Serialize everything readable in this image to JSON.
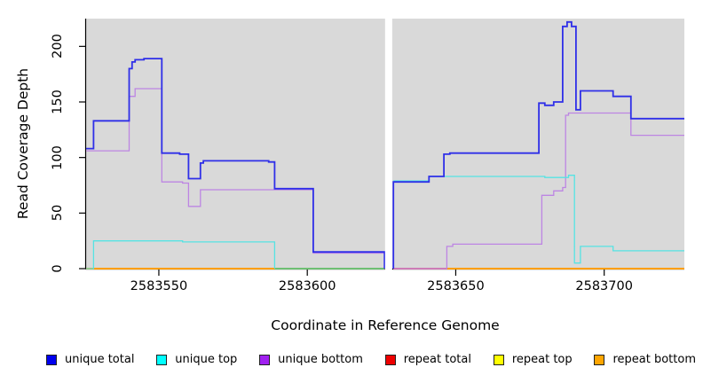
{
  "figure": {
    "background": "#ffffff",
    "panel_bg": "#d9d9d9",
    "axis_color": "#000000",
    "gap_color": "#ffffff"
  },
  "chart_data": {
    "type": "line",
    "subtype": "step-post",
    "title": "",
    "xlabel": "Coordinate in Reference Genome",
    "ylabel": "Read Coverage Depth",
    "x_range": [
      2583525.5,
      2583727.0
    ],
    "y_range": [
      0,
      225
    ],
    "x_ticks": [
      2583550,
      2583600,
      2583650,
      2583700
    ],
    "x_tick_labels": [
      "2583550",
      "2583600",
      "2583650",
      "2583700"
    ],
    "y_ticks": [
      0,
      50,
      100,
      150,
      200
    ],
    "y_tick_labels": [
      "0",
      "50",
      "100",
      "150",
      "200"
    ],
    "grid": false,
    "gap": {
      "from": 2583626.2,
      "to": 2583628.6
    },
    "legend_position": "bottom",
    "legend": [
      {
        "label": "unique total",
        "color": "#0000ee"
      },
      {
        "label": "unique top",
        "color": "#00ffff"
      },
      {
        "label": "unique bottom",
        "color": "#a020f0"
      },
      {
        "label": "repeat total",
        "color": "#ee0000"
      },
      {
        "label": "repeat top",
        "color": "#ffff00"
      },
      {
        "label": "repeat bottom",
        "color": "#ffa500"
      }
    ],
    "series": [
      {
        "name": "repeat total",
        "color": "#ee0000",
        "width": 1.2,
        "z": 1,
        "segments": [
          [
            [
              2583525.5,
              0
            ],
            [
              2583626,
              0
            ]
          ],
          [
            [
              2583629,
              0
            ],
            [
              2583727,
              0
            ]
          ]
        ]
      },
      {
        "name": "repeat top",
        "color": "#ffff00",
        "width": 1.2,
        "z": 2,
        "segments": [
          [
            [
              2583525.5,
              0
            ],
            [
              2583626,
              0
            ]
          ],
          [
            [
              2583629,
              0
            ],
            [
              2583727,
              0
            ]
          ]
        ]
      },
      {
        "name": "repeat bottom",
        "color": "#ff9e00",
        "width": 2,
        "z": 3,
        "segments": [
          [
            [
              2583525.5,
              0
            ],
            [
              2583626,
              0
            ]
          ],
          [
            [
              2583629,
              0
            ],
            [
              2583727,
              0
            ]
          ]
        ]
      },
      {
        "name": "zero-line blend: unique top over repeats",
        "color": "#6fbf73",
        "width": 2,
        "z": 4,
        "segments": [
          [
            [
              2583589,
              0
            ],
            [
              2583626,
              0
            ]
          ]
        ]
      },
      {
        "name": "zero-line blend: unique bottom over repeats",
        "color": "#e96c6c",
        "width": 2,
        "z": 5,
        "segments": [
          [
            [
              2583629,
              0
            ],
            [
              2583647,
              0
            ]
          ]
        ]
      },
      {
        "name": "unique bottom",
        "color": "#bd85e3",
        "width": 1.3,
        "z": 6,
        "segments": [
          [
            [
              2583525.5,
              106
            ],
            [
              2583540,
              155
            ],
            [
              2583542,
              162
            ],
            [
              2583551,
              78
            ],
            [
              2583558,
              77
            ],
            [
              2583560,
              56
            ],
            [
              2583564,
              71
            ],
            [
              2583602,
              14
            ],
            [
              2583626,
              0
            ]
          ],
          [
            [
              2583629,
              0
            ],
            [
              2583647,
              20
            ],
            [
              2583649,
              22
            ],
            [
              2583679,
              66
            ],
            [
              2583683,
              70
            ],
            [
              2583686,
              73
            ],
            [
              2583687,
              138
            ],
            [
              2583688,
              140
            ],
            [
              2583709,
              120
            ],
            [
              2583727,
              120
            ]
          ]
        ]
      },
      {
        "name": "unique top",
        "color": "#55e3e3",
        "width": 1.3,
        "z": 7,
        "segments": [
          [
            [
              2583525.5,
              0
            ],
            [
              2583528,
              25
            ],
            [
              2583558,
              24
            ],
            [
              2583589,
              0
            ]
          ],
          [
            [
              2583629,
              79
            ],
            [
              2583641,
              83
            ],
            [
              2583680,
              82
            ],
            [
              2583688,
              84
            ],
            [
              2583690,
              5
            ],
            [
              2583692,
              20
            ],
            [
              2583703,
              16
            ],
            [
              2583727,
              16
            ]
          ]
        ]
      },
      {
        "name": "unique total",
        "color": "#2f2fe8",
        "width": 1.8,
        "z": 8,
        "segments": [
          [
            [
              2583525.5,
              108
            ],
            [
              2583528,
              133
            ],
            [
              2583540,
              180
            ],
            [
              2583541,
              186
            ],
            [
              2583542,
              188
            ],
            [
              2583545,
              189
            ],
            [
              2583551,
              104
            ],
            [
              2583557,
              103
            ],
            [
              2583560,
              81
            ],
            [
              2583564,
              95
            ],
            [
              2583565,
              97
            ],
            [
              2583587,
              96
            ],
            [
              2583589,
              72
            ],
            [
              2583602,
              15
            ],
            [
              2583626,
              0
            ]
          ],
          [
            [
              2583629,
              0
            ],
            [
              2583629,
              78
            ],
            [
              2583641,
              83
            ],
            [
              2583646,
              103
            ],
            [
              2583648,
              104
            ],
            [
              2583678,
              149
            ],
            [
              2583680,
              147
            ],
            [
              2583683,
              150
            ],
            [
              2583686,
              154
            ],
            [
              2583686,
              218
            ],
            [
              2583687.5,
              222
            ],
            [
              2583689,
              218
            ],
            [
              2583690.5,
              143
            ],
            [
              2583692,
              160
            ],
            [
              2583703,
              155
            ],
            [
              2583709,
              135
            ],
            [
              2583727,
              135
            ]
          ]
        ]
      }
    ]
  }
}
